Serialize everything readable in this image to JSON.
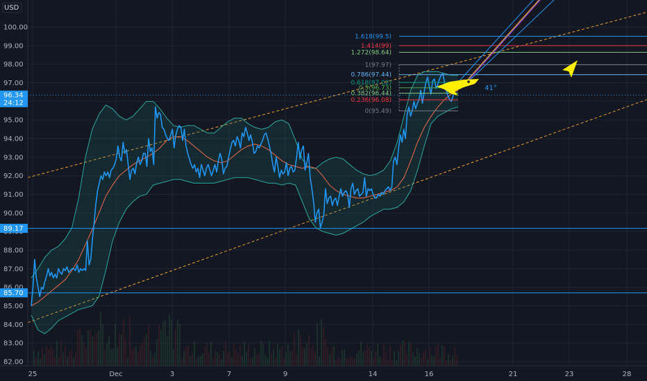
{
  "chart_data": {
    "type": "line",
    "currency": "USD",
    "ylim": [
      82.0,
      100.5
    ],
    "y_ticks": [
      "100.00",
      "99.00",
      "98.00",
      "97.00",
      "96.00",
      "95.00",
      "94.00",
      "93.00",
      "92.00",
      "91.00",
      "90.00",
      "89.00",
      "88.00",
      "87.00",
      "86.00",
      "85.00",
      "84.00",
      "83.00",
      "82.00"
    ],
    "x_ticks": [
      "25",
      "Dec",
      "3",
      "7",
      "9",
      "14",
      "16",
      "21",
      "23",
      "28"
    ],
    "price_tags": [
      {
        "value": 96.34,
        "label": "96.34",
        "sublabel": "24:12"
      },
      {
        "value": 89.17,
        "label": "89.17"
      },
      {
        "value": 85.7,
        "label": "85.70"
      }
    ],
    "fib_levels": [
      {
        "ratio": "1.618",
        "price": 99.5,
        "label": "1.618(99.5)",
        "color": "#2196f3"
      },
      {
        "ratio": "1.414",
        "price": 99.0,
        "label": "1.414(99)",
        "color": "#f23645"
      },
      {
        "ratio": "1.272",
        "price": 98.64,
        "label": "1.272(98.64)",
        "color": "#81c784"
      },
      {
        "ratio": "1",
        "price": 97.97,
        "label": "1(97.97)",
        "color": "#787b86"
      },
      {
        "ratio": "0.786",
        "price": 97.44,
        "label": "0.786(97.44)",
        "color": "#64b5f6"
      },
      {
        "ratio": "0.618",
        "price": 97.02,
        "label": "0.618(97.02)",
        "color": "#089981"
      },
      {
        "ratio": "0.5",
        "price": 96.73,
        "label": "0.5(96.73)",
        "color": "#4caf50"
      },
      {
        "ratio": "0.382",
        "price": 96.44,
        "label": "0.382(96.44)",
        "color": "#81c784"
      },
      {
        "ratio": "0.236",
        "price": 96.08,
        "label": "0.236(96.08)",
        "color": "#f23645"
      },
      {
        "ratio": "0",
        "price": 95.49,
        "label": "0(95.49)",
        "color": "#787b86"
      }
    ],
    "trend_angle_label": "41°",
    "series": [
      {
        "kind": "price",
        "color": "#2196f3",
        "values": [
          85.0,
          86.0,
          87.5,
          86.5,
          86.0,
          85.5,
          86.0,
          85.9,
          86.3,
          86.6,
          87.0,
          86.6,
          86.8,
          86.5,
          86.7,
          86.5,
          87.0,
          86.8,
          86.7,
          87.0,
          86.9,
          87.1,
          86.8,
          86.9,
          87.0,
          87.0,
          86.9,
          87.2,
          86.8,
          87.0,
          86.9,
          87.0,
          86.9,
          88.5,
          87.2,
          87.5,
          88.6,
          89.5,
          90.5,
          91.2,
          91.6,
          92.0,
          91.8,
          92.2,
          92.0,
          92.2,
          91.9,
          92.3,
          92.4,
          92.6,
          92.9,
          93.6,
          93.0,
          92.8,
          93.8,
          93.2,
          93.4,
          92.6,
          91.8,
          92.3,
          92.4,
          92.1,
          92.7,
          93.0,
          92.6,
          92.8,
          93.2,
          93.2,
          92.5,
          94.0,
          93.3,
          93.5,
          92.6,
          95.7,
          95.1,
          95.4,
          95.3,
          94.6,
          94.5,
          94.2,
          94.0,
          93.9,
          94.2,
          94.5,
          93.5,
          94.2,
          94.5,
          94.7,
          94.6,
          93.9,
          94.5,
          93.6,
          93.2,
          92.9,
          92.6,
          92.4,
          92.6,
          92.2,
          92.4,
          91.9,
          92.6,
          92.3,
          92.0,
          92.4,
          92.6,
          92.3,
          92.0,
          92.3,
          92.6,
          92.2,
          92.8,
          93.2,
          92.9,
          92.1,
          92.4,
          92.5,
          93.0,
          93.4,
          93.8,
          93.9,
          93.6,
          94.1,
          93.9,
          93.5,
          94.3,
          94.1,
          94.6,
          94.3,
          93.9,
          94.2,
          93.8,
          93.2,
          93.3,
          93.6,
          93.5,
          93.7,
          93.9,
          94.2,
          94.3,
          94.0,
          93.6,
          93.2,
          92.6,
          92.2,
          93.0,
          92.5,
          91.9,
          92.3,
          92.1,
          92.2,
          92.7,
          92.0,
          92.4,
          92.5,
          92.2,
          92.3,
          93.0,
          93.8,
          92.9,
          93.4,
          93.6,
          92.3,
          92.7,
          93.2,
          91.9,
          91.3,
          90.6,
          89.5,
          90.0,
          90.2,
          89.2,
          89.5,
          89.9,
          91.3,
          90.5,
          90.8,
          90.9,
          90.4,
          90.7,
          90.8,
          90.4,
          90.9,
          91.3,
          90.9,
          91.1,
          91.2,
          91.0,
          90.3,
          91.3,
          91.6,
          91.0,
          91.2,
          91.3,
          90.9,
          91.0,
          91.1,
          91.9,
          90.9,
          91.3,
          91.2,
          91.3,
          91.0,
          90.8,
          90.8,
          91.0,
          90.9,
          91.1,
          91.0,
          91.2,
          91.3,
          91.4,
          91.2,
          91.4,
          92.8,
          93.0,
          92.6,
          93.5,
          94.2,
          93.8,
          94.5,
          94.0,
          95.3,
          95.7,
          95.2,
          95.5,
          96.0,
          95.6,
          95.9,
          96.1,
          96.6,
          95.9,
          96.5,
          97.0,
          97.3,
          96.8,
          96.4,
          97.1,
          97.2,
          96.7,
          96.9,
          97.2,
          97.4,
          97.5,
          97.0,
          96.6,
          96.3,
          96.1,
          96.0,
          96.3,
          96.6,
          96.8,
          97.0
        ]
      },
      {
        "kind": "moving-average",
        "color": "#ef6c4a",
        "values": [
          85.0,
          85.2,
          85.5,
          85.8,
          86.1,
          86.4,
          86.9,
          87.5,
          88.3,
          89.1,
          90.0,
          90.9,
          91.5,
          92.0,
          92.3,
          92.6,
          92.8,
          93.0,
          93.2,
          93.5,
          93.9,
          94.1,
          94.1,
          93.9,
          93.6,
          93.3,
          93.0,
          92.8,
          92.7,
          92.8,
          93.1,
          93.4,
          93.6,
          93.7,
          93.6,
          93.4,
          93.1,
          92.8,
          92.6,
          92.5,
          92.4,
          92.5,
          92.4,
          92.0,
          91.5,
          91.2,
          91.0,
          90.9,
          90.8,
          90.8,
          90.9,
          91.0,
          91.1,
          91.2,
          91.4,
          91.9,
          92.8,
          93.8,
          94.6,
          95.2,
          95.7,
          96.1,
          96.4,
          96.6
        ]
      },
      {
        "kind": "upper-band",
        "color": "#2aa8a0",
        "values": [
          86.5,
          87.0,
          87.6,
          88.0,
          88.2,
          88.6,
          89.2,
          90.8,
          93.0,
          94.5,
          95.3,
          95.8,
          95.6,
          95.2,
          95.0,
          95.2,
          95.6,
          96.0,
          96.0,
          95.6,
          95.1,
          94.7,
          94.6,
          94.7,
          94.7,
          94.5,
          94.3,
          94.3,
          94.6,
          94.9,
          95.1,
          95.1,
          94.8,
          94.6,
          94.5,
          94.6,
          94.9,
          95.0,
          94.8,
          93.9,
          92.9,
          92.4,
          92.4,
          92.7,
          92.9,
          93.0,
          92.9,
          92.6,
          92.3,
          92.1,
          92.0,
          92.1,
          92.3,
          92.8,
          93.8,
          95.2,
          96.6,
          97.4,
          97.6,
          97.6,
          97.6,
          97.5,
          97.4,
          97.4
        ]
      },
      {
        "kind": "lower-band",
        "color": "#2aa8a0",
        "values": [
          84.5,
          83.7,
          83.5,
          83.8,
          84.2,
          84.4,
          84.6,
          84.8,
          84.9,
          85.0,
          85.5,
          86.9,
          88.5,
          89.5,
          90.2,
          90.6,
          90.9,
          91.0,
          91.5,
          91.6,
          91.7,
          91.8,
          91.8,
          91.7,
          91.6,
          91.6,
          91.6,
          91.6,
          91.7,
          91.8,
          91.9,
          91.9,
          91.9,
          91.8,
          91.7,
          91.6,
          91.6,
          91.5,
          91.6,
          91.5,
          90.6,
          89.7,
          89.2,
          89.0,
          88.9,
          88.8,
          88.9,
          89.1,
          89.3,
          89.5,
          89.8,
          90.0,
          90.2,
          90.2,
          90.3,
          90.6,
          91.2,
          92.3,
          93.6,
          94.8,
          95.2,
          95.4,
          95.6,
          95.7
        ]
      }
    ]
  }
}
